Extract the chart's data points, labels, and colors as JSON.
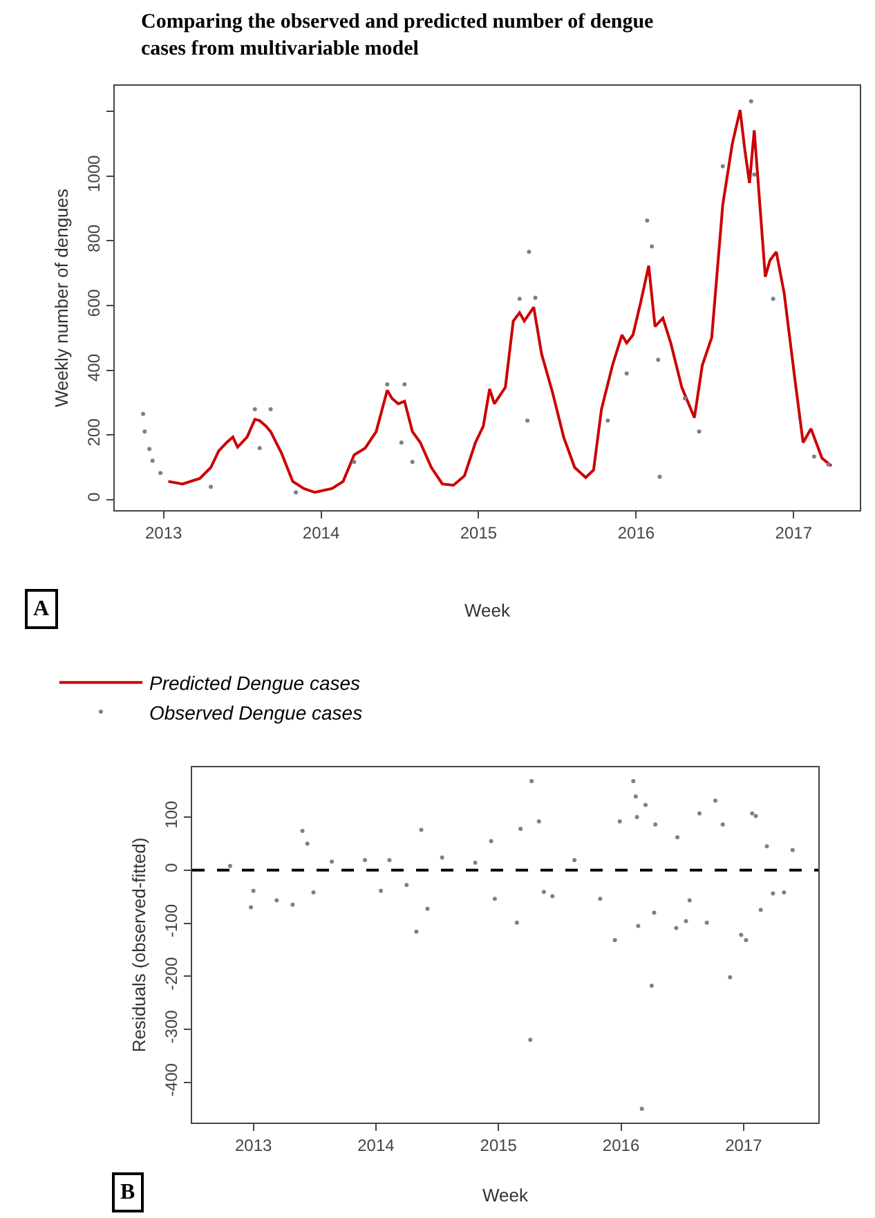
{
  "chart_data": [
    {
      "type": "line",
      "title": "Comparing the observed and predicted number of dengue cases from multivariable model",
      "xlabel": "Week",
      "ylabel": "Weekly number of dengues",
      "annotations": [
        "A"
      ],
      "legend": "bottom",
      "xlim": [
        2012.69,
        2017.42
      ],
      "xticks": [
        2013,
        2014,
        2015,
        2016,
        2017
      ],
      "ylim": [
        -33,
        1280
      ],
      "yticks": [
        0,
        200,
        400,
        600,
        800,
        1000,
        {
          "value": 1200,
          "label": null
        }
      ],
      "series": [
        {
          "name": "Predicted Dengue cases",
          "type": "line",
          "line_style": "solid",
          "color": "#cc0000",
          "x": [
            2013.03,
            2013.12,
            2013.23,
            2013.3,
            2013.35,
            2013.4,
            2013.44,
            2013.47,
            2013.53,
            2013.58,
            2013.61,
            2013.65,
            2013.68,
            2013.75,
            2013.82,
            2013.89,
            2013.96,
            2014.07,
            2014.14,
            2014.21,
            2014.28,
            2014.35,
            2014.42,
            2014.45,
            2014.49,
            2014.53,
            2014.58,
            2014.63,
            2014.7,
            2014.77,
            2014.84,
            2014.91,
            2014.98,
            2015.03,
            2015.07,
            2015.1,
            2015.17,
            2015.22,
            2015.26,
            2015.29,
            2015.35,
            2015.4,
            2015.47,
            2015.54,
            2015.61,
            2015.68,
            2015.73,
            2015.78,
            2015.85,
            2015.91,
            2015.94,
            2015.98,
            2016.03,
            2016.08,
            2016.12,
            2016.17,
            2016.22,
            2016.29,
            2016.37,
            2016.42,
            2016.48,
            2016.55,
            2016.61,
            2016.66,
            2016.69,
            2016.72,
            2016.75,
            2016.82,
            2016.85,
            2016.89,
            2016.94,
            2017.01,
            2017.06,
            2017.11,
            2017.18,
            2017.24
          ],
          "values": [
            56,
            48,
            65,
            99,
            150,
            176,
            193,
            162,
            193,
            248,
            244,
            227,
            210,
            142,
            56,
            34,
            22,
            34,
            56,
            138,
            159,
            210,
            338,
            313,
            296,
            304,
            210,
            176,
            99,
            48,
            44,
            73,
            176,
            227,
            342,
            296,
            347,
            552,
            578,
            552,
            595,
            450,
            330,
            193,
            99,
            68,
            91,
            279,
            415,
            509,
            484,
            509,
            612,
            723,
            535,
            561,
            484,
            347,
            253,
            415,
            501,
            911,
            1099,
            1205,
            1082,
            979,
            1142,
            689,
            740,
            766,
            638,
            364,
            176,
            219,
            128,
            104
          ]
        },
        {
          "name": "Observed Dengue cases",
          "type": "scatter",
          "marker": "circle",
          "color": "#808080",
          "x": [
            2012.87,
            2012.88,
            2012.91,
            2012.93,
            2012.98,
            2013.3,
            2013.58,
            2013.68,
            2013.61,
            2013.84,
            2014.21,
            2014.42,
            2014.53,
            2014.51,
            2014.58,
            2015.32,
            2015.26,
            2015.36,
            2015.31,
            2015.82,
            2015.94,
            2016.07,
            2016.1,
            2016.15,
            2016.14,
            2016.31,
            2016.4,
            2016.55,
            2016.73,
            2016.75,
            2016.87,
            2017.13,
            2017.22
          ],
          "values": [
            265,
            210,
            156,
            120,
            82,
            39,
            279,
            279,
            159,
            22,
            116,
            356,
            356,
            176,
            116,
            766,
            621,
            624,
            244,
            244,
            390,
            863,
            783,
            70,
            432,
            313,
            210,
            1031,
            1232,
            1005,
            621,
            133,
            108
          ]
        }
      ]
    },
    {
      "type": "scatter",
      "xlabel": "Week",
      "ylabel": "Residuals (observed-fitted)",
      "annotations": [
        "B"
      ],
      "marker": "circle",
      "xlim": [
        2012.5,
        2017.61
      ],
      "xticks": [
        2013,
        2014,
        2015,
        2016,
        2017
      ],
      "ylim": [
        -476,
        194
      ],
      "yticks": [
        -400,
        -300,
        -200,
        -100,
        0,
        100
      ],
      "ref_lines": [
        {
          "axis": "y",
          "value": 0,
          "color": "#000000",
          "line_style": "dashed"
        }
      ],
      "series": [
        {
          "color": "#808080",
          "x": [
            2012.81,
            2012.98,
            2013.0,
            2013.19,
            2013.32,
            2013.4,
            2013.44,
            2013.49,
            2013.64,
            2013.91,
            2014.04,
            2014.11,
            2014.25,
            2014.33,
            2014.37,
            2014.42,
            2014.54,
            2014.81,
            2014.94,
            2014.97,
            2015.15,
            2015.18,
            2015.27,
            2015.26,
            2015.33,
            2015.37,
            2015.44,
            2015.62,
            2015.83,
            2015.95,
            2015.99,
            2016.1,
            2016.12,
            2016.13,
            2016.14,
            2016.17,
            2016.2,
            2016.25,
            2016.27,
            2016.28,
            2016.46,
            2016.45,
            2016.53,
            2016.56,
            2016.64,
            2016.7,
            2016.77,
            2016.83,
            2016.89,
            2016.98,
            2017.02,
            2017.07,
            2017.1,
            2017.14,
            2017.19,
            2017.24,
            2017.33,
            2017.4
          ],
          "values": [
            8,
            -70,
            -39,
            -57,
            -65,
            74,
            50,
            -42,
            16,
            19,
            -39,
            19,
            -28,
            -116,
            76,
            -73,
            24,
            14,
            55,
            -54,
            -99,
            78,
            168,
            -320,
            92,
            -41,
            -49,
            19,
            -54,
            -132,
            92,
            168,
            139,
            100,
            -105,
            -450,
            123,
            -218,
            -80,
            86,
            62,
            -109,
            -96,
            -57,
            107,
            -99,
            131,
            86,
            -202,
            -122,
            -132,
            107,
            102,
            -75,
            45,
            -44,
            -42,
            38
          ]
        }
      ]
    }
  ]
}
